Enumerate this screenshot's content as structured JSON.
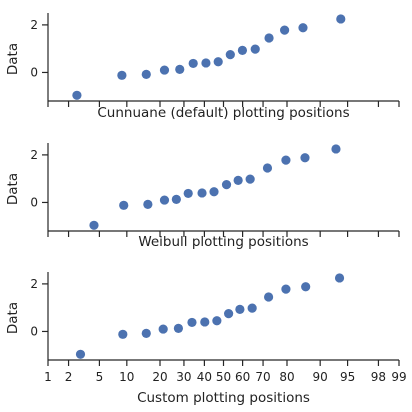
{
  "colors": {
    "marker": "#4c72b0",
    "axis": "#262626"
  },
  "chart_data": [
    {
      "type": "scatter",
      "title": "",
      "xlabel": "Cunnuane (default) plotting positions",
      "ylabel": "Data",
      "x_scale": "probability",
      "xlim": [
        1,
        99
      ],
      "ylim": [
        -1.2,
        2.5
      ],
      "yticks": [
        0,
        2
      ],
      "xtick_labels_shown": false,
      "grid": false,
      "points": [
        {
          "x": 2.6,
          "y": -0.96
        },
        {
          "x": 8.9,
          "y": -0.12
        },
        {
          "x": 15.3,
          "y": -0.08
        },
        {
          "x": 21.7,
          "y": 0.1
        },
        {
          "x": 28.1,
          "y": 0.13
        },
        {
          "x": 34.4,
          "y": 0.38
        },
        {
          "x": 40.8,
          "y": 0.4
        },
        {
          "x": 47.2,
          "y": 0.45
        },
        {
          "x": 53.6,
          "y": 0.75
        },
        {
          "x": 59.9,
          "y": 0.93
        },
        {
          "x": 66.3,
          "y": 0.98
        },
        {
          "x": 72.7,
          "y": 1.45
        },
        {
          "x": 79.1,
          "y": 1.78
        },
        {
          "x": 85.4,
          "y": 1.88
        },
        {
          "x": 94.0,
          "y": 2.25
        }
      ]
    },
    {
      "type": "scatter",
      "title": "",
      "xlabel": "Weibull plotting positions",
      "ylabel": "Data",
      "x_scale": "probability",
      "xlim": [
        1,
        99
      ],
      "ylim": [
        -1.2,
        2.5
      ],
      "yticks": [
        0,
        2
      ],
      "xtick_labels_shown": false,
      "grid": false,
      "points": [
        {
          "x": 4.3,
          "y": -0.96
        },
        {
          "x": 9.3,
          "y": -0.12
        },
        {
          "x": 15.8,
          "y": -0.08
        },
        {
          "x": 21.7,
          "y": 0.1
        },
        {
          "x": 26.6,
          "y": 0.13
        },
        {
          "x": 32.0,
          "y": 0.38
        },
        {
          "x": 38.8,
          "y": 0.4
        },
        {
          "x": 45.0,
          "y": 0.45
        },
        {
          "x": 51.6,
          "y": 0.75
        },
        {
          "x": 57.7,
          "y": 0.93
        },
        {
          "x": 63.8,
          "y": 0.98
        },
        {
          "x": 72.0,
          "y": 1.45
        },
        {
          "x": 79.6,
          "y": 1.78
        },
        {
          "x": 86.0,
          "y": 1.88
        },
        {
          "x": 93.2,
          "y": 2.25
        }
      ]
    },
    {
      "type": "scatter",
      "title": "",
      "xlabel": "Custom plotting positions",
      "ylabel": "Data",
      "x_scale": "probability",
      "xlim": [
        1,
        99
      ],
      "ylim": [
        -1.2,
        2.5
      ],
      "yticks": [
        0,
        2
      ],
      "xtick_labels_shown": true,
      "xticks": [
        1,
        2,
        5,
        10,
        20,
        30,
        40,
        50,
        60,
        70,
        80,
        90,
        95,
        98,
        99
      ],
      "xtick_labels": [
        "1",
        "2",
        "5",
        "10",
        "20",
        "30",
        "40",
        "50",
        "60",
        "70",
        "80",
        "90",
        "95",
        "98",
        "99"
      ],
      "grid": false,
      "points": [
        {
          "x": 2.9,
          "y": -0.96
        },
        {
          "x": 9.1,
          "y": -0.12
        },
        {
          "x": 15.3,
          "y": -0.08
        },
        {
          "x": 21.2,
          "y": 0.1
        },
        {
          "x": 27.5,
          "y": 0.13
        },
        {
          "x": 33.8,
          "y": 0.38
        },
        {
          "x": 40.2,
          "y": 0.4
        },
        {
          "x": 46.5,
          "y": 0.45
        },
        {
          "x": 52.7,
          "y": 0.75
        },
        {
          "x": 58.6,
          "y": 0.93
        },
        {
          "x": 64.8,
          "y": 0.98
        },
        {
          "x": 72.5,
          "y": 1.45
        },
        {
          "x": 79.6,
          "y": 1.78
        },
        {
          "x": 86.2,
          "y": 1.88
        },
        {
          "x": 93.8,
          "y": 2.25
        }
      ]
    }
  ]
}
